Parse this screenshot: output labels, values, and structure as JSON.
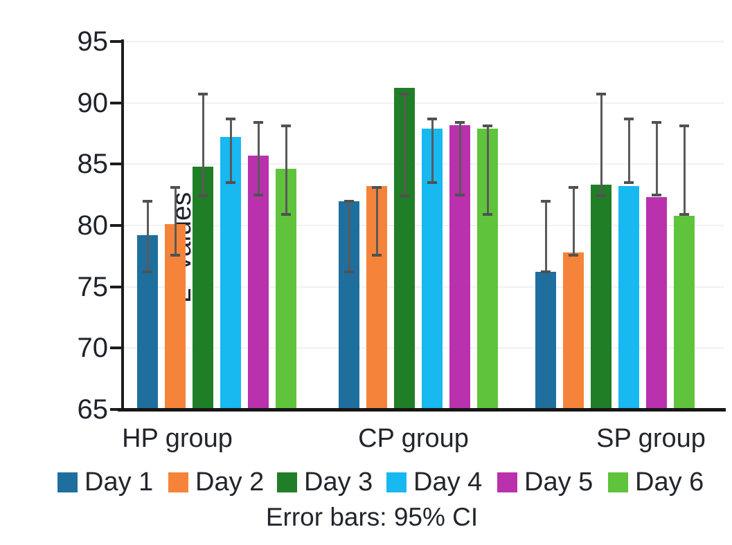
{
  "chart_data": {
    "type": "bar",
    "title": "",
    "xlabel": "",
    "ylabel": "L* values",
    "ylim": [
      65,
      95
    ],
    "yticks": [
      65,
      70,
      75,
      80,
      85,
      90,
      95
    ],
    "grid": true,
    "legend_position": "bottom",
    "footnote": "Error bars: 95% CI",
    "categories": [
      "HP group",
      "CP group",
      "SP group"
    ],
    "series": [
      {
        "name": "Day 1",
        "color": "#1e6f9e",
        "values": [
          79.2,
          82.0,
          76.2
        ],
        "ci_low": [
          76.2,
          76.2,
          76.2
        ],
        "ci_high": [
          82.0,
          82.0,
          82.0
        ]
      },
      {
        "name": "Day 2",
        "color": "#f5843a",
        "values": [
          80.1,
          83.2,
          77.8
        ],
        "ci_low": [
          77.6,
          77.6,
          77.6
        ],
        "ci_high": [
          83.1,
          83.1,
          83.1
        ]
      },
      {
        "name": "Day 3",
        "color": "#207e27",
        "values": [
          84.8,
          91.2,
          83.3
        ],
        "ci_low": [
          82.4,
          82.4,
          82.4
        ],
        "ci_high": [
          90.7,
          90.7,
          90.7
        ]
      },
      {
        "name": "Day 4",
        "color": "#18b8f1",
        "values": [
          87.2,
          87.9,
          83.2
        ],
        "ci_low": [
          83.5,
          83.5,
          83.5
        ],
        "ci_high": [
          88.7,
          88.7,
          88.7
        ]
      },
      {
        "name": "Day 5",
        "color": "#ba31ad",
        "values": [
          85.7,
          88.2,
          82.3
        ],
        "ci_low": [
          82.5,
          82.5,
          82.5
        ],
        "ci_high": [
          88.4,
          88.4,
          88.4
        ]
      },
      {
        "name": "Day 6",
        "color": "#60c33c",
        "values": [
          84.6,
          87.9,
          80.8
        ],
        "ci_low": [
          80.9,
          80.9,
          80.9
        ],
        "ci_high": [
          88.1,
          88.1,
          88.1
        ]
      }
    ],
    "error_bar_color": "#5a5a5a",
    "axis_color": "#1c1c1c"
  }
}
